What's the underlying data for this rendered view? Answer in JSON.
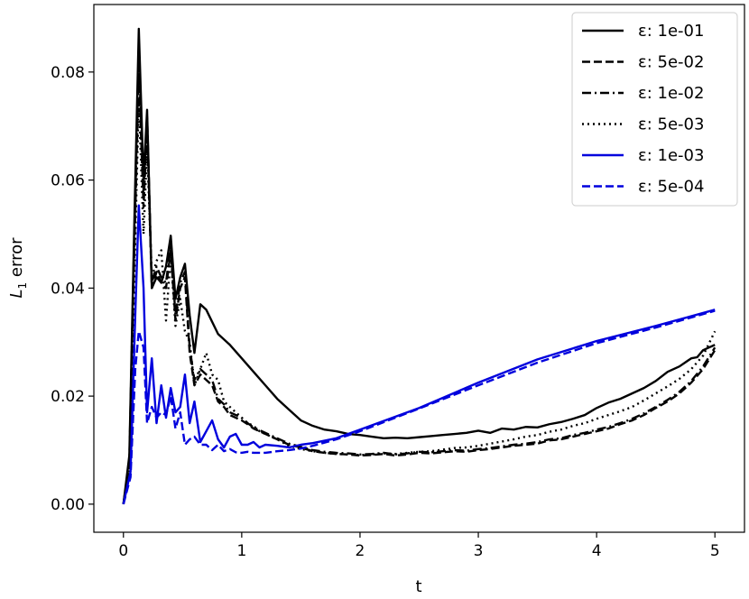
{
  "chart_data": {
    "type": "line",
    "title": "",
    "xlabel": "t",
    "ylabel_main": "L",
    "ylabel_sub": "1",
    "ylabel_rest": " error",
    "xlim": [
      -0.25,
      5.25
    ],
    "ylim": [
      -0.0052,
      0.0925
    ],
    "xticks": [
      0,
      1,
      2,
      3,
      4,
      5
    ],
    "yticks": [
      0.0,
      0.02,
      0.04,
      0.06,
      0.08
    ],
    "xtick_labels": [
      "0",
      "1",
      "2",
      "3",
      "4",
      "5"
    ],
    "ytick_labels": [
      "0.00",
      "0.02",
      "0.04",
      "0.06",
      "0.08"
    ],
    "legend_position": "top-right",
    "grid": false,
    "series": [
      {
        "name": "ε: 1e-01",
        "color": "#000000",
        "style": "solid",
        "x": [
          0,
          0.05,
          0.09,
          0.13,
          0.17,
          0.2,
          0.24,
          0.28,
          0.32,
          0.36,
          0.4,
          0.44,
          0.48,
          0.52,
          0.56,
          0.6,
          0.65,
          0.7,
          0.8,
          0.9,
          1.0,
          1.1,
          1.2,
          1.3,
          1.4,
          1.5,
          1.6,
          1.7,
          1.8,
          1.9,
          2.0,
          2.1,
          2.2,
          2.3,
          2.4,
          2.5,
          2.6,
          2.7,
          2.8,
          2.9,
          3.0,
          3.1,
          3.2,
          3.3,
          3.4,
          3.5,
          3.6,
          3.7,
          3.8,
          3.9,
          4.0,
          4.1,
          4.2,
          4.3,
          4.4,
          4.5,
          4.6,
          4.7,
          4.8,
          4.85,
          4.9,
          4.95,
          5.0
        ],
        "y": [
          0.0,
          0.009,
          0.05,
          0.088,
          0.06,
          0.073,
          0.04,
          0.042,
          0.041,
          0.044,
          0.0497,
          0.038,
          0.042,
          0.0445,
          0.035,
          0.028,
          0.037,
          0.036,
          0.0315,
          0.0295,
          0.027,
          0.0245,
          0.022,
          0.0195,
          0.0175,
          0.0155,
          0.0145,
          0.0138,
          0.0135,
          0.013,
          0.0128,
          0.0125,
          0.0122,
          0.0123,
          0.0122,
          0.0124,
          0.0126,
          0.0128,
          0.013,
          0.0132,
          0.0136,
          0.0132,
          0.014,
          0.0138,
          0.0143,
          0.0142,
          0.0148,
          0.0152,
          0.0158,
          0.0165,
          0.0178,
          0.0188,
          0.0195,
          0.0205,
          0.0215,
          0.0228,
          0.0245,
          0.0255,
          0.027,
          0.0272,
          0.0285,
          0.029,
          0.0295
        ]
      },
      {
        "name": "ε: 5e-02",
        "color": "#000000",
        "style": "dashed",
        "x": [
          0,
          0.05,
          0.09,
          0.13,
          0.17,
          0.2,
          0.24,
          0.28,
          0.32,
          0.36,
          0.4,
          0.44,
          0.48,
          0.52,
          0.56,
          0.6,
          0.65,
          0.7,
          0.75,
          0.8,
          0.85,
          0.9,
          0.95,
          1.0,
          1.05,
          1.1,
          1.15,
          1.2,
          1.25,
          1.3,
          1.4,
          1.5,
          1.6,
          1.7,
          1.8,
          1.9,
          2.0,
          2.1,
          2.2,
          2.3,
          2.4,
          2.5,
          2.6,
          2.7,
          2.8,
          2.9,
          3.0,
          3.1,
          3.2,
          3.3,
          3.4,
          3.5,
          3.6,
          3.7,
          3.8,
          3.9,
          4.0,
          4.1,
          4.2,
          4.3,
          4.4,
          4.5,
          4.6,
          4.7,
          4.8,
          4.9,
          5.0
        ],
        "y": [
          0.0,
          0.007,
          0.045,
          0.08,
          0.055,
          0.07,
          0.04,
          0.043,
          0.041,
          0.04,
          0.047,
          0.034,
          0.04,
          0.042,
          0.028,
          0.022,
          0.024,
          0.023,
          0.022,
          0.019,
          0.018,
          0.0165,
          0.016,
          0.0155,
          0.0148,
          0.014,
          0.0135,
          0.013,
          0.0125,
          0.012,
          0.011,
          0.0105,
          0.0098,
          0.0095,
          0.0093,
          0.0092,
          0.009,
          0.0091,
          0.0093,
          0.009,
          0.0092,
          0.0095,
          0.0094,
          0.0096,
          0.0098,
          0.0097,
          0.01,
          0.0102,
          0.0105,
          0.0108,
          0.011,
          0.0112,
          0.0118,
          0.012,
          0.0125,
          0.013,
          0.0135,
          0.014,
          0.0148,
          0.0155,
          0.0165,
          0.0178,
          0.019,
          0.0205,
          0.0225,
          0.025,
          0.0285
        ]
      },
      {
        "name": "ε: 1e-02",
        "color": "#000000",
        "style": "dashdot",
        "x": [
          0,
          0.05,
          0.09,
          0.13,
          0.17,
          0.2,
          0.24,
          0.28,
          0.32,
          0.36,
          0.4,
          0.44,
          0.48,
          0.52,
          0.56,
          0.6,
          0.65,
          0.7,
          0.75,
          0.8,
          0.85,
          0.9,
          0.95,
          1.0,
          1.05,
          1.1,
          1.15,
          1.2,
          1.25,
          1.3,
          1.4,
          1.5,
          1.6,
          1.7,
          1.8,
          1.9,
          2.0,
          2.1,
          2.2,
          2.3,
          2.4,
          2.5,
          2.6,
          2.7,
          2.8,
          2.9,
          3.0,
          3.1,
          3.2,
          3.3,
          3.4,
          3.5,
          3.6,
          3.7,
          3.8,
          3.9,
          4.0,
          4.1,
          4.2,
          4.3,
          4.4,
          4.5,
          4.6,
          4.7,
          4.8,
          4.9,
          5.0
        ],
        "y": [
          0.0,
          0.008,
          0.048,
          0.083,
          0.058,
          0.072,
          0.041,
          0.044,
          0.042,
          0.041,
          0.048,
          0.035,
          0.041,
          0.043,
          0.029,
          0.023,
          0.025,
          0.024,
          0.023,
          0.0195,
          0.0185,
          0.017,
          0.0165,
          0.016,
          0.015,
          0.0142,
          0.0137,
          0.0132,
          0.0127,
          0.0122,
          0.0112,
          0.0106,
          0.01,
          0.0097,
          0.0095,
          0.0094,
          0.0092,
          0.0093,
          0.0095,
          0.0092,
          0.0094,
          0.0097,
          0.0096,
          0.0098,
          0.01,
          0.0099,
          0.0102,
          0.0104,
          0.0107,
          0.011,
          0.0112,
          0.0115,
          0.012,
          0.0122,
          0.0128,
          0.0132,
          0.0138,
          0.0143,
          0.015,
          0.0158,
          0.0168,
          0.018,
          0.0193,
          0.0208,
          0.0228,
          0.0255,
          0.029
        ]
      },
      {
        "name": "ε: 5e-03",
        "color": "#000000",
        "style": "dotted",
        "x": [
          0,
          0.05,
          0.09,
          0.13,
          0.17,
          0.2,
          0.24,
          0.28,
          0.32,
          0.36,
          0.4,
          0.44,
          0.48,
          0.52,
          0.56,
          0.6,
          0.65,
          0.7,
          0.75,
          0.8,
          0.85,
          0.9,
          0.95,
          1.0,
          1.05,
          1.1,
          1.15,
          1.2,
          1.25,
          1.3,
          1.4,
          1.5,
          1.6,
          1.7,
          1.8,
          1.9,
          2.0,
          2.1,
          2.2,
          2.3,
          2.4,
          2.5,
          2.6,
          2.7,
          2.8,
          2.9,
          3.0,
          3.1,
          3.2,
          3.3,
          3.4,
          3.5,
          3.6,
          3.7,
          3.8,
          3.9,
          4.0,
          4.1,
          4.2,
          4.3,
          4.4,
          4.5,
          4.6,
          4.7,
          4.8,
          4.9,
          5.0
        ],
        "y": [
          0.0,
          0.006,
          0.04,
          0.075,
          0.05,
          0.066,
          0.042,
          0.045,
          0.047,
          0.034,
          0.046,
          0.033,
          0.038,
          0.032,
          0.03,
          0.022,
          0.025,
          0.028,
          0.024,
          0.023,
          0.019,
          0.018,
          0.017,
          0.016,
          0.015,
          0.0145,
          0.0135,
          0.013,
          0.0125,
          0.012,
          0.0108,
          0.0102,
          0.0098,
          0.0095,
          0.0093,
          0.0092,
          0.0091,
          0.0092,
          0.0094,
          0.0093,
          0.0095,
          0.0097,
          0.0098,
          0.0101,
          0.0104,
          0.0105,
          0.0108,
          0.0112,
          0.0116,
          0.012,
          0.0125,
          0.0128,
          0.0134,
          0.0138,
          0.0145,
          0.015,
          0.0158,
          0.0165,
          0.0172,
          0.018,
          0.0192,
          0.0205,
          0.0218,
          0.0232,
          0.025,
          0.0275,
          0.032
        ]
      },
      {
        "name": "ε: 1e-03",
        "color": "#0000dd",
        "style": "solid",
        "x": [
          0,
          0.06,
          0.1,
          0.13,
          0.17,
          0.2,
          0.24,
          0.28,
          0.32,
          0.36,
          0.4,
          0.44,
          0.48,
          0.52,
          0.56,
          0.6,
          0.65,
          0.7,
          0.75,
          0.8,
          0.85,
          0.9,
          0.95,
          1.0,
          1.05,
          1.1,
          1.15,
          1.2,
          1.3,
          1.4,
          1.5,
          1.6,
          1.8,
          2.0,
          2.5,
          3.0,
          3.5,
          4.0,
          4.5,
          5.0
        ],
        "y": [
          0.0,
          0.006,
          0.035,
          0.0553,
          0.04,
          0.017,
          0.027,
          0.015,
          0.022,
          0.016,
          0.0215,
          0.017,
          0.018,
          0.024,
          0.015,
          0.019,
          0.0115,
          0.0135,
          0.0155,
          0.012,
          0.0105,
          0.0125,
          0.013,
          0.011,
          0.011,
          0.0115,
          0.0105,
          0.011,
          0.0108,
          0.0105,
          0.011,
          0.0113,
          0.0122,
          0.0138,
          0.0178,
          0.0225,
          0.0268,
          0.0302,
          0.033,
          0.036
        ]
      },
      {
        "name": "ε: 5e-04",
        "color": "#0000dd",
        "style": "dashed",
        "x": [
          0,
          0.06,
          0.1,
          0.13,
          0.17,
          0.2,
          0.24,
          0.28,
          0.32,
          0.36,
          0.4,
          0.44,
          0.48,
          0.52,
          0.56,
          0.6,
          0.65,
          0.7,
          0.75,
          0.8,
          0.85,
          0.9,
          0.95,
          1.0,
          1.05,
          1.1,
          1.2,
          1.3,
          1.4,
          1.5,
          1.6,
          1.8,
          2.0,
          2.5,
          3.0,
          3.5,
          4.0,
          4.5,
          5.0
        ],
        "y": [
          0.0,
          0.005,
          0.025,
          0.032,
          0.029,
          0.015,
          0.018,
          0.016,
          0.017,
          0.0165,
          0.02,
          0.014,
          0.017,
          0.011,
          0.012,
          0.0125,
          0.011,
          0.011,
          0.01,
          0.011,
          0.0098,
          0.0102,
          0.0096,
          0.0095,
          0.0097,
          0.0095,
          0.0095,
          0.0098,
          0.01,
          0.0103,
          0.0108,
          0.012,
          0.0135,
          0.0177,
          0.022,
          0.0262,
          0.0298,
          0.0327,
          0.0358
        ]
      }
    ]
  }
}
